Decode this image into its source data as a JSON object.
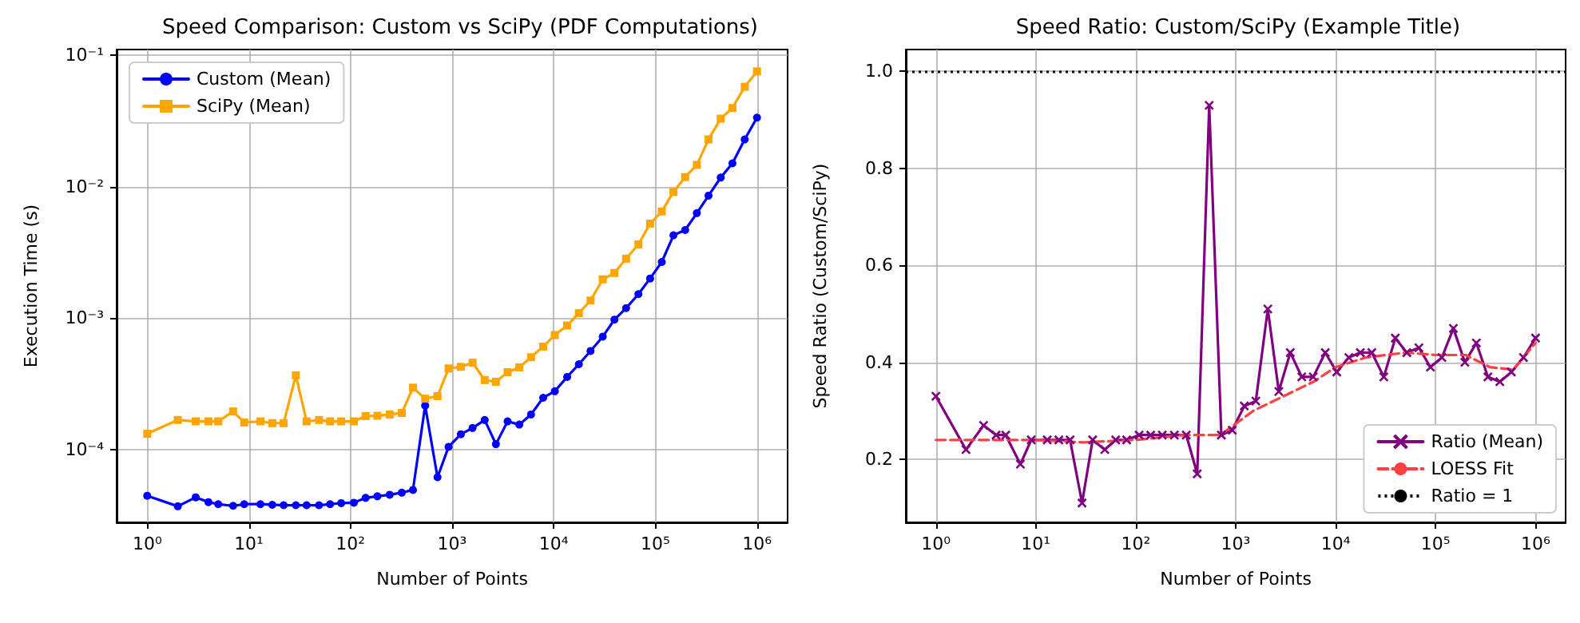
{
  "chart_data": [
    {
      "type": "line",
      "title": "Speed Comparison: Custom vs SciPy (PDF Computations)",
      "xlabel": "Number of Points",
      "ylabel": "Execution Time (s)",
      "log": "xy",
      "grid": true,
      "legend": "top left",
      "x": [
        1,
        2,
        3,
        4,
        5,
        7,
        9,
        13,
        17,
        22,
        29,
        37,
        49,
        63,
        81,
        108,
        141,
        184,
        243,
        320,
        412,
        543,
        718,
        923,
        1219,
        1589,
        2094,
        2698,
        3516,
        4581,
        5970,
        7870,
        10250,
        13550,
        17660,
        23010,
        30340,
        39540,
        51520,
        68080,
        88720,
        115600,
        150700,
        196300,
        255900,
        333400,
        439500,
        572800,
        756800,
        1000000
      ],
      "xlim": [
        0.5,
        2000000
      ],
      "xticks": [
        {
          "value": 1,
          "label": "10⁰"
        },
        {
          "value": 10,
          "label": "10¹"
        },
        {
          "value": 100,
          "label": "10²"
        },
        {
          "value": 1000,
          "label": "10³"
        },
        {
          "value": 10000,
          "label": "10⁴"
        },
        {
          "value": 100000,
          "label": "10⁵"
        },
        {
          "value": 1000000,
          "label": "10⁶"
        }
      ],
      "ylim": [
        2.8e-05,
        0.11
      ],
      "yticks": [
        {
          "value": 0.0001,
          "label": "10⁻⁴"
        },
        {
          "value": 0.001,
          "label": "10⁻³"
        },
        {
          "value": 0.01,
          "label": "10⁻²"
        },
        {
          "value": 0.1,
          "label": "10⁻¹"
        }
      ],
      "series": [
        {
          "name": "Custom (Mean)",
          "color": "#0000ff",
          "marker": "circle",
          "values": [
            4.46e-05,
            3.71e-05,
            4.34e-05,
            3.99e-05,
            3.85e-05,
            3.74e-05,
            3.85e-05,
            3.85e-05,
            3.81e-05,
            3.78e-05,
            3.78e-05,
            3.78e-05,
            3.78e-05,
            3.85e-05,
            3.92e-05,
            3.95e-05,
            4.3e-05,
            4.42e-05,
            4.54e-05,
            4.71e-05,
            4.94e-05,
            0.000216,
            6.17e-05,
            0.000105,
            0.000131,
            0.000146,
            0.000168,
            0.00011,
            0.000164,
            0.000155,
            0.000185,
            0.000248,
            0.000278,
            0.000357,
            0.000446,
            0.000562,
            0.000723,
            0.000973,
            0.00119,
            0.00152,
            0.002,
            0.00267,
            0.00426,
            0.00467,
            0.00628,
            0.00853,
            0.0117,
            0.015,
            0.0228,
            0.0334
          ]
        },
        {
          "name": "SciPy (Mean)",
          "color": "#ffa500",
          "marker": "square",
          "values": [
            0.000132,
            0.000168,
            0.000164,
            0.000164,
            0.000164,
            0.000195,
            0.000161,
            0.000164,
            0.000159,
            0.000159,
            0.000367,
            0.000164,
            0.000168,
            0.000164,
            0.000164,
            0.000164,
            0.00018,
            0.000181,
            0.000185,
            0.00019,
            0.000296,
            0.000244,
            0.000255,
            0.000414,
            0.000426,
            0.000458,
            0.000338,
            0.000328,
            0.000388,
            0.000422,
            0.000504,
            0.000606,
            0.000743,
            0.000878,
            0.00109,
            0.00136,
            0.00197,
            0.0022,
            0.00283,
            0.00363,
            0.00522,
            0.00646,
            0.00911,
            0.0118,
            0.0146,
            0.0228,
            0.0328,
            0.0395,
            0.0573,
            0.075
          ]
        }
      ]
    },
    {
      "type": "line",
      "title": "Speed Ratio: Custom/SciPy (Example Title)",
      "xlabel": "Number of Points",
      "ylabel": "Speed Ratio (Custom/SciPy)",
      "log": "x",
      "grid": true,
      "legend": "bottom right",
      "x": [
        1,
        2,
        3,
        4,
        5,
        7,
        9,
        13,
        17,
        22,
        29,
        37,
        49,
        63,
        81,
        108,
        141,
        184,
        243,
        320,
        412,
        543,
        718,
        923,
        1219,
        1589,
        2094,
        2698,
        3516,
        4581,
        5970,
        7870,
        10250,
        13550,
        17660,
        23010,
        30340,
        39540,
        51520,
        68080,
        88720,
        115600,
        150700,
        196300,
        255900,
        333400,
        439500,
        572800,
        756800,
        1000000
      ],
      "xlim": [
        0.5,
        2000000
      ],
      "xticks": [
        {
          "value": 1,
          "label": "10⁰"
        },
        {
          "value": 10,
          "label": "10¹"
        },
        {
          "value": 100,
          "label": "10²"
        },
        {
          "value": 1000,
          "label": "10³"
        },
        {
          "value": 10000,
          "label": "10⁴"
        },
        {
          "value": 100000,
          "label": "10⁵"
        },
        {
          "value": 1000000,
          "label": "10⁶"
        }
      ],
      "ylim": [
        0.07,
        1.045
      ],
      "yticks": [
        0.2,
        0.4,
        0.6,
        0.8,
        {
          "value": 1,
          "label": "1.0"
        }
      ],
      "series": [
        {
          "name": "Ratio (Mean)",
          "color": "#800080",
          "marker": "cross",
          "values": [
            0.33,
            0.22,
            0.27,
            0.25,
            0.25,
            0.19,
            0.24,
            0.24,
            0.24,
            0.24,
            0.11,
            0.24,
            0.22,
            0.24,
            0.24,
            0.25,
            0.25,
            0.25,
            0.25,
            0.25,
            0.17,
            0.93,
            0.25,
            0.26,
            0.31,
            0.32,
            0.51,
            0.34,
            0.42,
            0.37,
            0.37,
            0.42,
            0.38,
            0.41,
            0.42,
            0.42,
            0.37,
            0.45,
            0.42,
            0.43,
            0.39,
            0.41,
            0.47,
            0.4,
            0.44,
            0.37,
            0.36,
            0.38,
            0.41,
            0.45
          ]
        },
        {
          "name": "LOESS Fit",
          "color": "#ff4040",
          "marker": "none",
          "line_style": "dashed",
          "x": [
            1,
            3,
            10,
            30,
            100,
            300,
            700,
            1500,
            3000,
            6000,
            10000,
            20000,
            50000,
            100000,
            200000,
            350000,
            600000,
            1000000
          ],
          "values": [
            0.24,
            0.24,
            0.24,
            0.235,
            0.24,
            0.25,
            0.25,
            0.3,
            0.33,
            0.36,
            0.39,
            0.41,
            0.42,
            0.415,
            0.415,
            0.39,
            0.385,
            0.44
          ]
        }
      ],
      "ref_lines": [
        {
          "axis": "y",
          "value": 1,
          "label": "Ratio = 1",
          "color": "#000000",
          "line_style": "dotted"
        }
      ]
    }
  ]
}
